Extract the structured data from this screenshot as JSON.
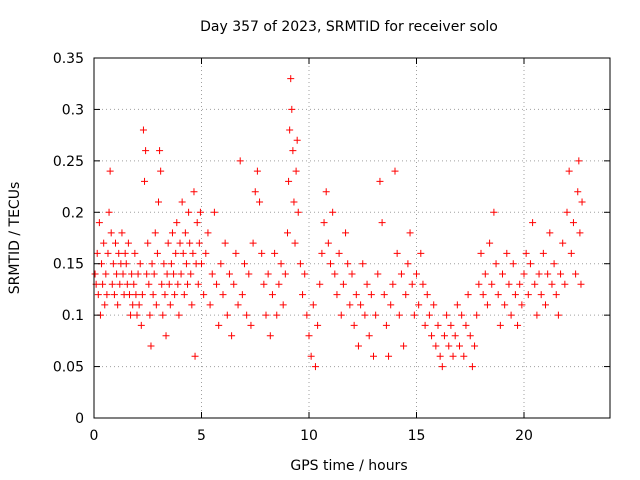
{
  "chart_data": {
    "type": "scatter",
    "title": "Day 357 of 2023, SRMTID for receiver solo",
    "xlabel": "GPS time / hours",
    "ylabel": "SRMTID / TECUs",
    "xlim": [
      0,
      24
    ],
    "ylim": [
      0,
      0.35
    ],
    "xticks": [
      0,
      5,
      10,
      15,
      20
    ],
    "xtick_labels": [
      "0",
      "5",
      "10",
      "15",
      "20"
    ],
    "yticks": [
      0,
      0.05,
      0.1,
      0.15,
      0.2,
      0.25,
      0.3,
      0.35
    ],
    "ytick_labels": [
      "0",
      "0.05",
      "0.1",
      "0.15",
      "0.2",
      "0.25",
      "0.3",
      "0.35"
    ],
    "grid": true,
    "marker": "plus",
    "color": "#ff0000",
    "series": [
      {
        "name": "SRMTID",
        "points": [
          [
            0.05,
            0.14
          ],
          [
            0.1,
            0.13
          ],
          [
            0.15,
            0.16
          ],
          [
            0.2,
            0.12
          ],
          [
            0.25,
            0.19
          ],
          [
            0.3,
            0.1
          ],
          [
            0.35,
            0.15
          ],
          [
            0.4,
            0.13
          ],
          [
            0.45,
            0.17
          ],
          [
            0.5,
            0.11
          ],
          [
            0.55,
            0.14
          ],
          [
            0.6,
            0.12
          ],
          [
            0.65,
            0.16
          ],
          [
            0.7,
            0.2
          ],
          [
            0.75,
            0.24
          ],
          [
            0.8,
            0.18
          ],
          [
            0.85,
            0.13
          ],
          [
            0.9,
            0.15
          ],
          [
            0.95,
            0.12
          ],
          [
            1.0,
            0.17
          ],
          [
            1.05,
            0.14
          ],
          [
            1.1,
            0.11
          ],
          [
            1.15,
            0.16
          ],
          [
            1.2,
            0.13
          ],
          [
            1.25,
            0.15
          ],
          [
            1.3,
            0.18
          ],
          [
            1.35,
            0.14
          ],
          [
            1.4,
            0.12
          ],
          [
            1.45,
            0.16
          ],
          [
            1.5,
            0.15
          ],
          [
            1.55,
            0.13
          ],
          [
            1.6,
            0.17
          ],
          [
            1.65,
            0.12
          ],
          [
            1.7,
            0.1
          ],
          [
            1.75,
            0.14
          ],
          [
            1.8,
            0.11
          ],
          [
            1.85,
            0.13
          ],
          [
            1.9,
            0.16
          ],
          [
            1.95,
            0.12
          ],
          [
            2.0,
            0.1
          ],
          [
            2.05,
            0.14
          ],
          [
            2.1,
            0.11
          ],
          [
            2.15,
            0.15
          ],
          [
            2.2,
            0.09
          ],
          [
            2.25,
            0.12
          ],
          [
            2.3,
            0.28
          ],
          [
            2.35,
            0.23
          ],
          [
            2.4,
            0.26
          ],
          [
            2.45,
            0.14
          ],
          [
            2.5,
            0.17
          ],
          [
            2.55,
            0.13
          ],
          [
            2.6,
            0.1
          ],
          [
            2.65,
            0.07
          ],
          [
            2.7,
            0.15
          ],
          [
            2.75,
            0.12
          ],
          [
            2.8,
            0.14
          ],
          [
            2.85,
            0.18
          ],
          [
            2.9,
            0.11
          ],
          [
            2.95,
            0.16
          ],
          [
            3.0,
            0.21
          ],
          [
            3.05,
            0.26
          ],
          [
            3.1,
            0.24
          ],
          [
            3.15,
            0.13
          ],
          [
            3.2,
            0.1
          ],
          [
            3.25,
            0.15
          ],
          [
            3.3,
            0.12
          ],
          [
            3.35,
            0.08
          ],
          [
            3.4,
            0.14
          ],
          [
            3.45,
            0.17
          ],
          [
            3.5,
            0.13
          ],
          [
            3.55,
            0.11
          ],
          [
            3.6,
            0.15
          ],
          [
            3.65,
            0.18
          ],
          [
            3.7,
            0.14
          ],
          [
            3.75,
            0.12
          ],
          [
            3.8,
            0.16
          ],
          [
            3.85,
            0.19
          ],
          [
            3.9,
            0.13
          ],
          [
            3.95,
            0.1
          ],
          [
            4.0,
            0.17
          ],
          [
            4.05,
            0.14
          ],
          [
            4.1,
            0.21
          ],
          [
            4.15,
            0.16
          ],
          [
            4.2,
            0.12
          ],
          [
            4.25,
            0.18
          ],
          [
            4.3,
            0.15
          ],
          [
            4.35,
            0.13
          ],
          [
            4.4,
            0.2
          ],
          [
            4.45,
            0.17
          ],
          [
            4.5,
            0.14
          ],
          [
            4.55,
            0.11
          ],
          [
            4.6,
            0.16
          ],
          [
            4.65,
            0.22
          ],
          [
            4.7,
            0.06
          ],
          [
            4.75,
            0.15
          ],
          [
            4.8,
            0.19
          ],
          [
            4.85,
            0.13
          ],
          [
            4.9,
            0.17
          ],
          [
            4.95,
            0.2
          ],
          [
            5.0,
            0.15
          ],
          [
            5.1,
            0.12
          ],
          [
            5.2,
            0.16
          ],
          [
            5.3,
            0.18
          ],
          [
            5.4,
            0.11
          ],
          [
            5.5,
            0.14
          ],
          [
            5.6,
            0.2
          ],
          [
            5.7,
            0.13
          ],
          [
            5.8,
            0.09
          ],
          [
            5.9,
            0.15
          ],
          [
            6.0,
            0.12
          ],
          [
            6.1,
            0.17
          ],
          [
            6.2,
            0.1
          ],
          [
            6.3,
            0.14
          ],
          [
            6.4,
            0.08
          ],
          [
            6.5,
            0.13
          ],
          [
            6.6,
            0.16
          ],
          [
            6.7,
            0.11
          ],
          [
            6.8,
            0.25
          ],
          [
            6.9,
            0.12
          ],
          [
            7.0,
            0.15
          ],
          [
            7.1,
            0.1
          ],
          [
            7.2,
            0.14
          ],
          [
            7.3,
            0.09
          ],
          [
            7.4,
            0.17
          ],
          [
            7.5,
            0.22
          ],
          [
            7.6,
            0.24
          ],
          [
            7.7,
            0.21
          ],
          [
            7.8,
            0.16
          ],
          [
            7.9,
            0.13
          ],
          [
            8.0,
            0.1
          ],
          [
            8.1,
            0.14
          ],
          [
            8.2,
            0.08
          ],
          [
            8.3,
            0.12
          ],
          [
            8.4,
            0.16
          ],
          [
            8.5,
            0.1
          ],
          [
            8.6,
            0.13
          ],
          [
            8.7,
            0.15
          ],
          [
            8.8,
            0.11
          ],
          [
            8.9,
            0.14
          ],
          [
            9.0,
            0.18
          ],
          [
            9.05,
            0.23
          ],
          [
            9.1,
            0.28
          ],
          [
            9.15,
            0.33
          ],
          [
            9.2,
            0.3
          ],
          [
            9.25,
            0.26
          ],
          [
            9.3,
            0.21
          ],
          [
            9.35,
            0.17
          ],
          [
            9.4,
            0.24
          ],
          [
            9.45,
            0.27
          ],
          [
            9.5,
            0.2
          ],
          [
            9.6,
            0.15
          ],
          [
            9.7,
            0.12
          ],
          [
            9.8,
            0.14
          ],
          [
            9.9,
            0.1
          ],
          [
            10.0,
            0.08
          ],
          [
            10.1,
            0.06
          ],
          [
            10.2,
            0.11
          ],
          [
            10.3,
            0.05
          ],
          [
            10.4,
            0.09
          ],
          [
            10.5,
            0.13
          ],
          [
            10.6,
            0.16
          ],
          [
            10.7,
            0.19
          ],
          [
            10.8,
            0.22
          ],
          [
            10.9,
            0.17
          ],
          [
            11.0,
            0.15
          ],
          [
            11.1,
            0.2
          ],
          [
            11.2,
            0.14
          ],
          [
            11.3,
            0.12
          ],
          [
            11.4,
            0.16
          ],
          [
            11.5,
            0.1
          ],
          [
            11.6,
            0.13
          ],
          [
            11.7,
            0.18
          ],
          [
            11.8,
            0.15
          ],
          [
            11.9,
            0.11
          ],
          [
            12.0,
            0.14
          ],
          [
            12.1,
            0.09
          ],
          [
            12.2,
            0.12
          ],
          [
            12.3,
            0.07
          ],
          [
            12.4,
            0.11
          ],
          [
            12.5,
            0.15
          ],
          [
            12.6,
            0.1
          ],
          [
            12.7,
            0.13
          ],
          [
            12.8,
            0.08
          ],
          [
            12.9,
            0.12
          ],
          [
            13.0,
            0.06
          ],
          [
            13.1,
            0.1
          ],
          [
            13.2,
            0.14
          ],
          [
            13.3,
            0.23
          ],
          [
            13.4,
            0.19
          ],
          [
            13.5,
            0.12
          ],
          [
            13.6,
            0.09
          ],
          [
            13.7,
            0.06
          ],
          [
            13.8,
            0.11
          ],
          [
            13.9,
            0.13
          ],
          [
            14.0,
            0.24
          ],
          [
            14.1,
            0.16
          ],
          [
            14.2,
            0.1
          ],
          [
            14.3,
            0.14
          ],
          [
            14.4,
            0.07
          ],
          [
            14.5,
            0.12
          ],
          [
            14.6,
            0.15
          ],
          [
            14.7,
            0.18
          ],
          [
            14.8,
            0.13
          ],
          [
            14.9,
            0.1
          ],
          [
            15.0,
            0.14
          ],
          [
            15.1,
            0.11
          ],
          [
            15.2,
            0.16
          ],
          [
            15.3,
            0.13
          ],
          [
            15.4,
            0.09
          ],
          [
            15.5,
            0.12
          ],
          [
            15.6,
            0.1
          ],
          [
            15.7,
            0.08
          ],
          [
            15.8,
            0.11
          ],
          [
            15.9,
            0.07
          ],
          [
            16.0,
            0.09
          ],
          [
            16.1,
            0.06
          ],
          [
            16.2,
            0.05
          ],
          [
            16.3,
            0.08
          ],
          [
            16.4,
            0.1
          ],
          [
            16.5,
            0.07
          ],
          [
            16.6,
            0.09
          ],
          [
            16.7,
            0.06
          ],
          [
            16.8,
            0.08
          ],
          [
            16.9,
            0.11
          ],
          [
            17.0,
            0.07
          ],
          [
            17.1,
            0.1
          ],
          [
            17.2,
            0.06
          ],
          [
            17.3,
            0.09
          ],
          [
            17.4,
            0.12
          ],
          [
            17.5,
            0.08
          ],
          [
            17.6,
            0.05
          ],
          [
            17.7,
            0.07
          ],
          [
            17.8,
            0.1
          ],
          [
            17.9,
            0.13
          ],
          [
            18.0,
            0.16
          ],
          [
            18.1,
            0.12
          ],
          [
            18.2,
            0.14
          ],
          [
            18.3,
            0.11
          ],
          [
            18.4,
            0.17
          ],
          [
            18.5,
            0.13
          ],
          [
            18.6,
            0.2
          ],
          [
            18.7,
            0.15
          ],
          [
            18.8,
            0.12
          ],
          [
            18.9,
            0.09
          ],
          [
            19.0,
            0.14
          ],
          [
            19.1,
            0.11
          ],
          [
            19.2,
            0.16
          ],
          [
            19.3,
            0.13
          ],
          [
            19.4,
            0.1
          ],
          [
            19.5,
            0.15
          ],
          [
            19.6,
            0.12
          ],
          [
            19.7,
            0.09
          ],
          [
            19.8,
            0.13
          ],
          [
            19.9,
            0.11
          ],
          [
            20.0,
            0.14
          ],
          [
            20.1,
            0.16
          ],
          [
            20.2,
            0.12
          ],
          [
            20.3,
            0.15
          ],
          [
            20.4,
            0.19
          ],
          [
            20.5,
            0.13
          ],
          [
            20.6,
            0.1
          ],
          [
            20.7,
            0.14
          ],
          [
            20.8,
            0.12
          ],
          [
            20.9,
            0.16
          ],
          [
            21.0,
            0.11
          ],
          [
            21.1,
            0.14
          ],
          [
            21.2,
            0.18
          ],
          [
            21.3,
            0.13
          ],
          [
            21.4,
            0.15
          ],
          [
            21.5,
            0.12
          ],
          [
            21.6,
            0.1
          ],
          [
            21.7,
            0.14
          ],
          [
            21.8,
            0.17
          ],
          [
            21.9,
            0.13
          ],
          [
            22.0,
            0.2
          ],
          [
            22.1,
            0.24
          ],
          [
            22.2,
            0.16
          ],
          [
            22.3,
            0.19
          ],
          [
            22.4,
            0.14
          ],
          [
            22.5,
            0.22
          ],
          [
            22.55,
            0.25
          ],
          [
            22.6,
            0.18
          ],
          [
            22.65,
            0.13
          ],
          [
            22.7,
            0.21
          ]
        ]
      }
    ]
  }
}
